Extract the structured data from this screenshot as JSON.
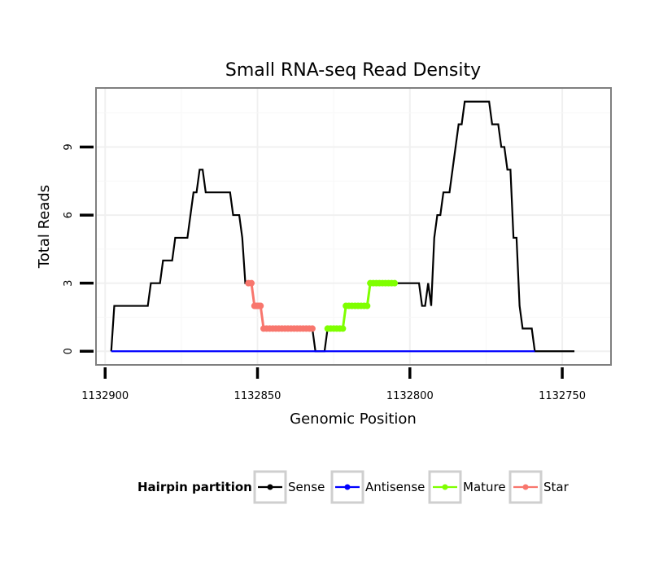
{
  "chart_data": {
    "type": "line",
    "title": "Small RNA-seq Read Density",
    "xlabel": "Genomic Position",
    "ylabel": "Total Reads",
    "xlim": [
      1132903,
      1132734
    ],
    "ylim": [
      -0.6,
      11.6
    ],
    "x_reversed": true,
    "x_ticks": [
      1132900,
      1132850,
      1132800,
      1132750
    ],
    "x_tick_labels": [
      "1132900",
      "1132850",
      "1132800",
      "1132750"
    ],
    "y_ticks": [
      0,
      3,
      6,
      9
    ],
    "y_tick_labels": [
      "0",
      "3",
      "6",
      "9"
    ],
    "grid": true,
    "legend": {
      "title": "Hairpin partition",
      "position": "bottom",
      "entries": [
        {
          "label": "Sense",
          "color": "#000000"
        },
        {
          "label": "Antisense",
          "color": "#0000ff"
        },
        {
          "label": "Mature",
          "color": "#7fff00"
        },
        {
          "label": "Star",
          "color": "#f8766d"
        }
      ]
    },
    "series": [
      {
        "name": "Sense",
        "color": "#000000",
        "style": "line",
        "points": [
          [
            1132898,
            0
          ],
          [
            1132897,
            2
          ],
          [
            1132896,
            2
          ],
          [
            1132886,
            2
          ],
          [
            1132885,
            3
          ],
          [
            1132882,
            3
          ],
          [
            1132881,
            4
          ],
          [
            1132878,
            4
          ],
          [
            1132877,
            5
          ],
          [
            1132873,
            5
          ],
          [
            1132872,
            6
          ],
          [
            1132871,
            7
          ],
          [
            1132870,
            7
          ],
          [
            1132869,
            8
          ],
          [
            1132868,
            8
          ],
          [
            1132867,
            7
          ],
          [
            1132859,
            7
          ],
          [
            1132858,
            6
          ],
          [
            1132856,
            6
          ],
          [
            1132855,
            5
          ],
          [
            1132854,
            3
          ],
          [
            1132852,
            3
          ],
          [
            1132851,
            2
          ],
          [
            1132849,
            2
          ],
          [
            1132848,
            1
          ],
          [
            1132832,
            1
          ],
          [
            1132831,
            0
          ],
          [
            1132828,
            0
          ],
          [
            1132827,
            1
          ],
          [
            1132822,
            1
          ],
          [
            1132821,
            2
          ],
          [
            1132814,
            2
          ],
          [
            1132813,
            3
          ],
          [
            1132797,
            3
          ],
          [
            1132796,
            2
          ],
          [
            1132795,
            2
          ],
          [
            1132794,
            3
          ],
          [
            1132793,
            2
          ],
          [
            1132792,
            5
          ],
          [
            1132791,
            6
          ],
          [
            1132790,
            6
          ],
          [
            1132789,
            7
          ],
          [
            1132787,
            7
          ],
          [
            1132786,
            8
          ],
          [
            1132784,
            10
          ],
          [
            1132783,
            10
          ],
          [
            1132782,
            11
          ],
          [
            1132774,
            11
          ],
          [
            1132773,
            10
          ],
          [
            1132771,
            10
          ],
          [
            1132770,
            9
          ],
          [
            1132769,
            9
          ],
          [
            1132768,
            8
          ],
          [
            1132767,
            8
          ],
          [
            1132766,
            5
          ],
          [
            1132765,
            5
          ],
          [
            1132764,
            2
          ],
          [
            1132763,
            1
          ],
          [
            1132760,
            1
          ],
          [
            1132759,
            0
          ],
          [
            1132746,
            0
          ]
        ]
      },
      {
        "name": "Antisense",
        "color": "#0000ff",
        "style": "line",
        "points": [
          [
            1132898,
            0
          ],
          [
            1132759,
            0
          ]
        ]
      },
      {
        "name": "Star",
        "color": "#f8766d",
        "style": "line+points",
        "points": [
          [
            1132853,
            3
          ],
          [
            1132852,
            3
          ],
          [
            1132851,
            2
          ],
          [
            1132850.5,
            2
          ],
          [
            1132850,
            2
          ],
          [
            1132849.5,
            2
          ],
          [
            1132849,
            2
          ],
          [
            1132848,
            1
          ],
          [
            1132847,
            1
          ],
          [
            1132846,
            1
          ],
          [
            1132845,
            1
          ],
          [
            1132844,
            1
          ],
          [
            1132843,
            1
          ],
          [
            1132842,
            1
          ],
          [
            1132841,
            1
          ],
          [
            1132840,
            1
          ],
          [
            1132839,
            1
          ],
          [
            1132838,
            1
          ],
          [
            1132837,
            1
          ],
          [
            1132836,
            1
          ],
          [
            1132835,
            1
          ],
          [
            1132834,
            1
          ],
          [
            1132833,
            1
          ],
          [
            1132832,
            1
          ]
        ]
      },
      {
        "name": "Mature",
        "color": "#7fff00",
        "style": "line+points",
        "points": [
          [
            1132827,
            1
          ],
          [
            1132826,
            1
          ],
          [
            1132825,
            1
          ],
          [
            1132824,
            1
          ],
          [
            1132823,
            1
          ],
          [
            1132822,
            1
          ],
          [
            1132821,
            2
          ],
          [
            1132820,
            2
          ],
          [
            1132819,
            2
          ],
          [
            1132818,
            2
          ],
          [
            1132817,
            2
          ],
          [
            1132816,
            2
          ],
          [
            1132815,
            2
          ],
          [
            1132814,
            2
          ],
          [
            1132813,
            3
          ],
          [
            1132812,
            3
          ],
          [
            1132811,
            3
          ],
          [
            1132810,
            3
          ],
          [
            1132809,
            3
          ],
          [
            1132808,
            3
          ],
          [
            1132807,
            3
          ],
          [
            1132806,
            3
          ],
          [
            1132805,
            3
          ]
        ]
      }
    ]
  }
}
